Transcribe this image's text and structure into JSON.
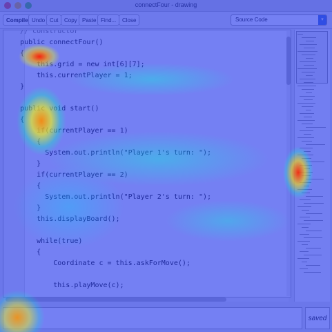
{
  "window": {
    "title": "connectFour - drawing"
  },
  "toolbar": {
    "compile_label": "Compile",
    "undo_label": "Undo",
    "cut_label": "Cut",
    "copy_label": "Copy",
    "paste_label": "Paste",
    "find_label": "Find...",
    "close_label": "Close",
    "view_select": "Source Code"
  },
  "editor": {
    "lines": [
      "    // constructor",
      "    public connectFour()",
      "    {",
      "        this.grid = new int[6][7];",
      "        this.currentPlayer = 1;",
      "    }",
      "",
      "    public void start()",
      "    {",
      "        if(currentPlayer == 1)",
      "        {",
      "          System.out.println(\"Player 1's turn: \");",
      "        }",
      "        if(currentPlayer == 2)",
      "        {",
      "          System.out.println(\"Player 2's turn: \");",
      "        }",
      "        this.displayBoard();",
      "",
      "        while(true)",
      "        {",
      "            Coordinate c = this.askForMove();",
      "",
      "            this.playMove(c);"
    ]
  },
  "status": {
    "text": "saved"
  },
  "colors": {
    "heatmap_base": "#1e32eb",
    "heat_hot": "#ff1e00",
    "heat_warm": "#ffff00"
  }
}
